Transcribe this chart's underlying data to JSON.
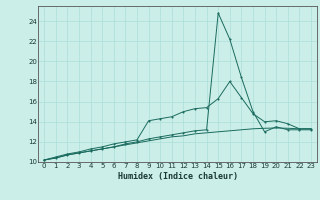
{
  "xlabel": "Humidex (Indice chaleur)",
  "background_color": "#cceee8",
  "grid_color": "#aaddd8",
  "line_color": "#1a6b5e",
  "xlim": [
    -0.5,
    23.5
  ],
  "ylim": [
    10,
    25.5
  ],
  "yticks": [
    10,
    12,
    14,
    16,
    18,
    20,
    22,
    24
  ],
  "xticks": [
    0,
    1,
    2,
    3,
    4,
    5,
    6,
    7,
    8,
    9,
    10,
    11,
    12,
    13,
    14,
    15,
    16,
    17,
    18,
    19,
    20,
    21,
    22,
    23
  ],
  "x": [
    0,
    1,
    2,
    3,
    4,
    5,
    6,
    7,
    8,
    9,
    10,
    11,
    12,
    13,
    14,
    15,
    16,
    17,
    18,
    19,
    20,
    21,
    22,
    23
  ],
  "series_spike": [
    10.2,
    10.4,
    10.7,
    10.9,
    11.1,
    11.3,
    11.5,
    11.8,
    12.0,
    12.3,
    12.5,
    12.7,
    12.9,
    13.1,
    13.2,
    24.8,
    22.2,
    18.4,
    15.0,
    13.0,
    13.5,
    13.2,
    13.2,
    13.2
  ],
  "series_mid": [
    10.2,
    10.5,
    10.8,
    11.0,
    11.3,
    11.5,
    11.8,
    12.0,
    12.2,
    14.1,
    14.3,
    14.5,
    15.0,
    15.3,
    15.4,
    16.3,
    18.0,
    16.4,
    14.8,
    14.0,
    14.1,
    13.8,
    13.3,
    13.3
  ],
  "series_smooth": [
    10.2,
    10.4,
    10.7,
    10.9,
    11.1,
    11.3,
    11.5,
    11.7,
    11.9,
    12.1,
    12.3,
    12.5,
    12.6,
    12.8,
    12.9,
    13.0,
    13.1,
    13.2,
    13.3,
    13.35,
    13.38,
    13.35,
    13.3,
    13.3
  ]
}
